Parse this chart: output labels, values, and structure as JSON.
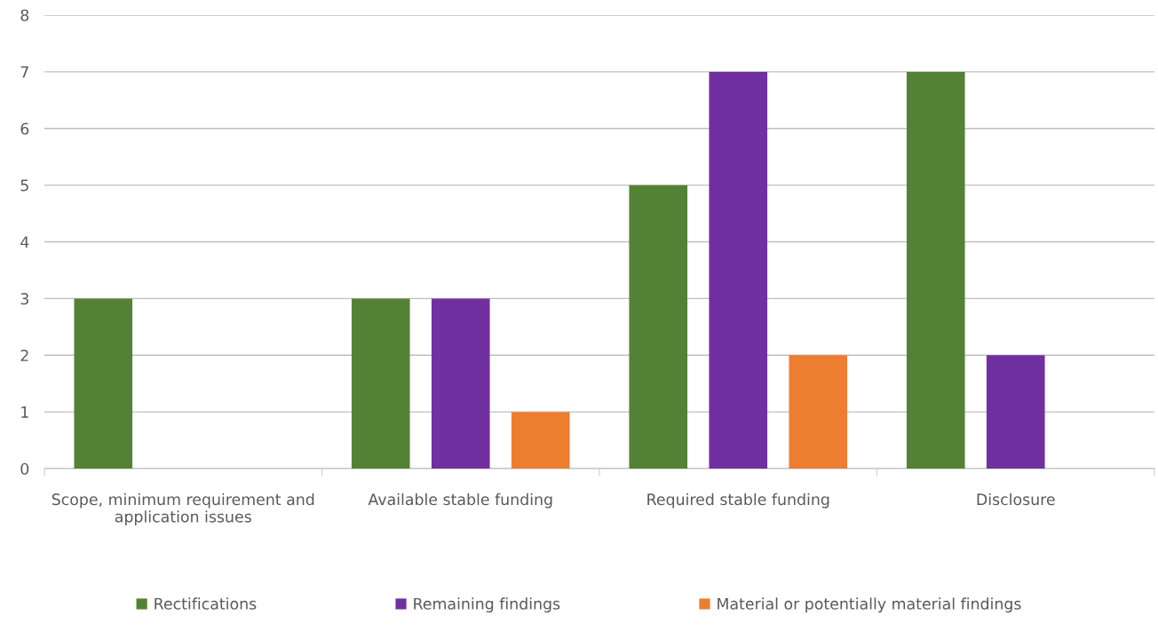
{
  "chart_data": {
    "type": "bar",
    "categories": [
      "Scope, minimum requirement and\napplication issues",
      "Available stable funding",
      "Required stable funding",
      "Disclosure"
    ],
    "series": [
      {
        "name": "Rectifications",
        "color": "#548235",
        "values": [
          3,
          3,
          5,
          7
        ]
      },
      {
        "name": "Remaining findings",
        "color": "#7030a0",
        "values": [
          0,
          3,
          7,
          2
        ]
      },
      {
        "name": "Material or potentially material findings",
        "color": "#ed7d31",
        "values": [
          0,
          1,
          2,
          0
        ]
      }
    ],
    "ylim": [
      0,
      8
    ],
    "yticks": [
      0,
      1,
      2,
      3,
      4,
      5,
      6,
      7,
      8
    ],
    "grid": "y",
    "legend": "bottom"
  }
}
